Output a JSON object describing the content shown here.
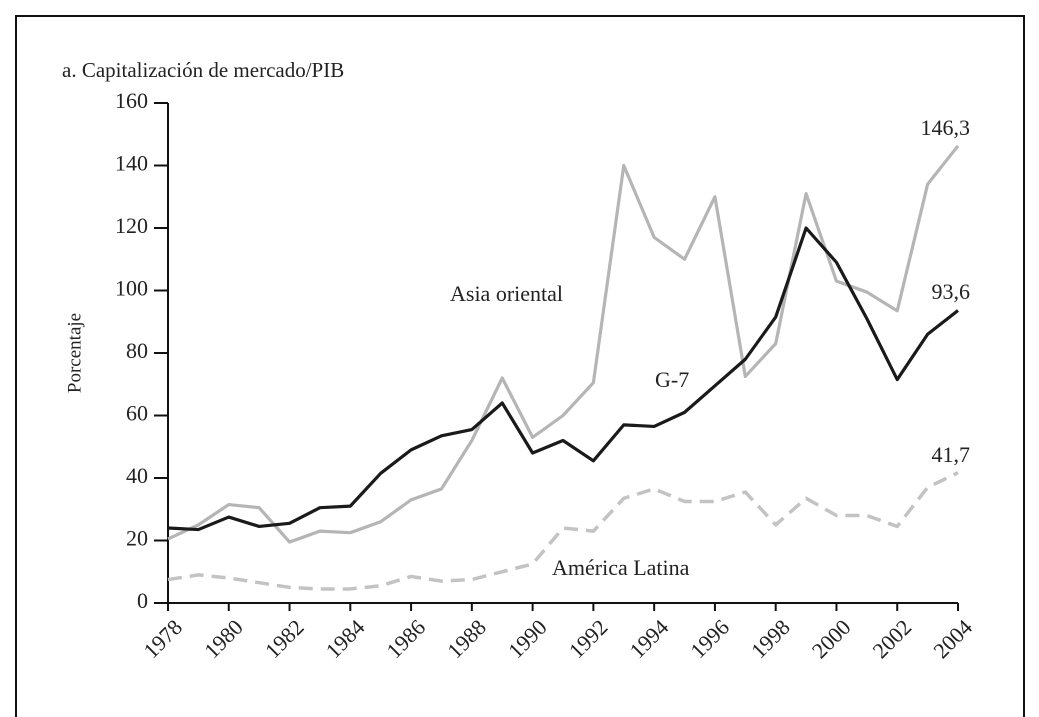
{
  "chart_data": {
    "type": "line",
    "title": "a. Capitalización de mercado/PIB",
    "y_label": "Porcentaje",
    "x": [
      1978,
      1979,
      1980,
      1981,
      1982,
      1983,
      1984,
      1985,
      1986,
      1987,
      1988,
      1989,
      1990,
      1991,
      1992,
      1993,
      1994,
      1995,
      1996,
      1997,
      1998,
      1999,
      2000,
      2001,
      2002,
      2003,
      2004
    ],
    "series": [
      {
        "name": "Asia oriental",
        "color": "#b5b5b5",
        "linestyle": "solid",
        "values": [
          20.5,
          25,
          31.5,
          30.5,
          19.5,
          23,
          22.5,
          26,
          33,
          36.5,
          52,
          72,
          53,
          60,
          70.5,
          140,
          117,
          110,
          130,
          72.5,
          83,
          131,
          103,
          99.5,
          93.5,
          134,
          146.3
        ],
        "value_labels": [
          null,
          null,
          null,
          null,
          null,
          null,
          null,
          null,
          null,
          null,
          null,
          null,
          null,
          null,
          null,
          null,
          null,
          null,
          null,
          null,
          null,
          null,
          null,
          null,
          null,
          null,
          "146,3"
        ]
      },
      {
        "name": "G-7",
        "color": "#1a1a1a",
        "linestyle": "solid",
        "values": [
          24,
          23.5,
          27.5,
          24.5,
          25.5,
          30.5,
          31,
          41.5,
          49,
          53.5,
          55.5,
          64,
          48,
          52,
          45.5,
          57,
          56.5,
          61,
          69.5,
          78,
          91.5,
          120,
          109,
          91,
          71.5,
          86,
          93.6
        ],
        "value_labels": [
          null,
          null,
          null,
          null,
          null,
          null,
          null,
          null,
          null,
          null,
          null,
          null,
          null,
          null,
          null,
          null,
          null,
          null,
          null,
          null,
          null,
          null,
          null,
          null,
          null,
          null,
          "93,6"
        ]
      },
      {
        "name": "América Latina",
        "color": "#c3c3c3",
        "linestyle": "dashed",
        "values": [
          7.5,
          9,
          8,
          6.5,
          5,
          4.5,
          4.5,
          5.5,
          8.5,
          7,
          7.5,
          10,
          12.5,
          24,
          23,
          33.5,
          36.5,
          32.5,
          32.5,
          35.5,
          25,
          33.5,
          28,
          28,
          24.5,
          37,
          41.7
        ],
        "value_labels": [
          null,
          null,
          null,
          null,
          null,
          null,
          null,
          null,
          null,
          null,
          null,
          null,
          null,
          null,
          null,
          null,
          null,
          null,
          null,
          null,
          null,
          null,
          null,
          null,
          null,
          null,
          "41,7"
        ]
      }
    ],
    "xlim": [
      1978,
      2004
    ],
    "xticks": [
      1978,
      1980,
      1982,
      1984,
      1986,
      1988,
      1990,
      1992,
      1994,
      1996,
      1998,
      2000,
      2002,
      2004
    ],
    "ylim": [
      0,
      160
    ],
    "yticks": [
      0,
      20,
      40,
      60,
      80,
      100,
      120,
      140,
      160
    ],
    "grid": false
  }
}
